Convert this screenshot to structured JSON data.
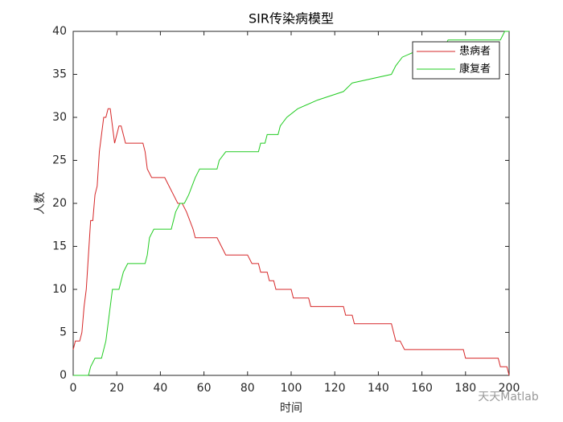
{
  "chart_data": {
    "type": "line",
    "title": "SIR传染病模型",
    "x_label": "时间",
    "y_label": "人数",
    "watermark": "天天Matlab",
    "xlim": [
      0,
      200
    ],
    "ylim": [
      0,
      40
    ],
    "xticks": [
      0,
      20,
      40,
      60,
      80,
      100,
      120,
      140,
      160,
      180,
      200
    ],
    "yticks": [
      0,
      5,
      10,
      15,
      20,
      25,
      30,
      35,
      40
    ],
    "legend_position": "upper-right",
    "series": [
      {
        "name": "患病者",
        "color": "#d62728",
        "x": [
          0,
          1,
          3,
          4,
          5,
          6,
          7,
          8,
          9,
          10,
          11,
          12,
          13,
          14,
          15,
          16,
          17,
          18,
          19,
          20,
          21,
          22,
          24,
          25,
          32,
          33,
          34,
          36,
          42,
          44,
          46,
          48,
          50,
          52,
          55,
          56,
          66,
          68,
          70,
          80,
          82,
          85,
          86,
          89,
          90,
          92,
          93,
          100,
          101,
          108,
          109,
          124,
          125,
          128,
          129,
          146,
          147,
          148,
          150,
          152,
          179,
          180,
          195,
          196,
          199,
          200
        ],
        "values": [
          3,
          4,
          4,
          5,
          8,
          10,
          14,
          18,
          18,
          21,
          22,
          26,
          28,
          30,
          30,
          31,
          31,
          29,
          27,
          28,
          29,
          29,
          27,
          27,
          27,
          26,
          24,
          23,
          23,
          22,
          21,
          20,
          20,
          19,
          17,
          16,
          16,
          15,
          14,
          14,
          13,
          13,
          12,
          12,
          11,
          11,
          10,
          10,
          9,
          9,
          8,
          8,
          7,
          7,
          6,
          6,
          5,
          4,
          4,
          3,
          3,
          2,
          2,
          1,
          1,
          0
        ]
      },
      {
        "name": "康复者",
        "color": "#22cc22",
        "x": [
          0,
          7,
          8,
          10,
          13,
          15,
          16,
          17,
          18,
          21,
          23,
          25,
          33,
          34,
          35,
          37,
          45,
          47,
          49,
          51,
          53,
          56,
          58,
          66,
          67,
          70,
          85,
          86,
          88,
          89,
          94,
          95,
          98,
          103,
          112,
          124,
          128,
          146,
          148,
          151,
          160,
          170,
          172,
          196,
          198,
          200
        ],
        "values": [
          0,
          0,
          1,
          2,
          2,
          4,
          6,
          8,
          10,
          10,
          12,
          13,
          13,
          14,
          16,
          17,
          17,
          19,
          20,
          20,
          21,
          23,
          24,
          24,
          25,
          26,
          26,
          27,
          27,
          28,
          28,
          29,
          30,
          31,
          32,
          33,
          34,
          35,
          36,
          37,
          38,
          38,
          39,
          39,
          40,
          40
        ]
      }
    ]
  }
}
